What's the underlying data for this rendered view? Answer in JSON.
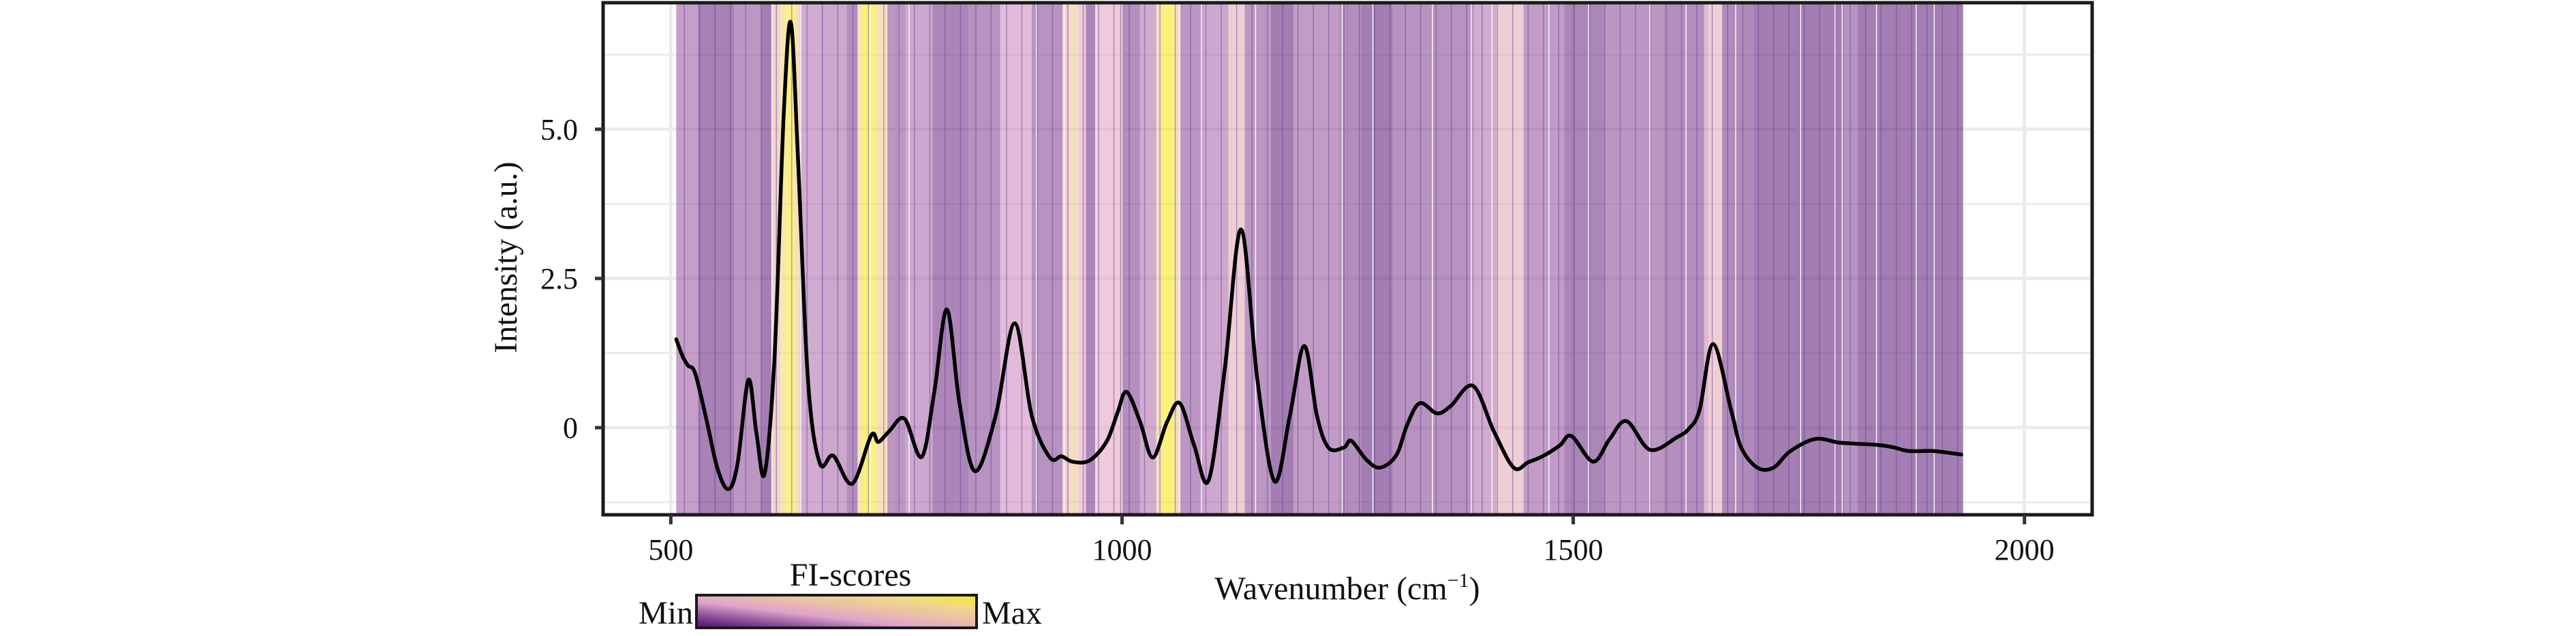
{
  "chart_data": {
    "type": "line",
    "title": "",
    "xlabel": "Wavenumber (cm⁻¹)",
    "xlabel_main": "Wavenumber (cm",
    "xlabel_sup": "−1",
    "xlabel_close": ")",
    "ylabel": "Intensity (a.u.)",
    "xlim": [
      425,
      2075
    ],
    "ylim": [
      -1.46,
      7.12
    ],
    "x_ticks": [
      500,
      1000,
      1500,
      2000
    ],
    "x_tick_labels": [
      "500",
      "1000",
      "1500",
      "2000"
    ],
    "y_ticks": [
      0,
      2.5,
      5.0
    ],
    "y_tick_labels": [
      "0",
      "2.5",
      "5.0"
    ],
    "y_minor_gridlines": [
      -1.25,
      1.25,
      3.75,
      6.25
    ],
    "grid": true,
    "series": [
      {
        "name": "Spectrum",
        "color": "#000000",
        "x": [
          506,
          513,
          519,
          527,
          540,
          552,
          564,
          574,
          586,
          595,
          604,
          615,
          625,
          633,
          641,
          652,
          665,
          680,
          701,
          722,
          730,
          742,
          759,
          778,
          792,
          806,
          820,
          837,
          860,
          881,
          900,
          920,
          933,
          945,
          964,
          983,
          995,
          1005,
          1020,
          1034,
          1050,
          1064,
          1080,
          1096,
          1114,
          1132,
          1150,
          1169,
          1186,
          1202,
          1216,
          1229,
          1246,
          1254,
          1271,
          1286,
          1304,
          1316,
          1330,
          1349,
          1364,
          1389,
          1412,
          1434,
          1450,
          1466,
          1485,
          1498,
          1522,
          1540,
          1559,
          1585,
          1615,
          1628,
          1640,
          1655,
          1675,
          1686,
          1704,
          1722,
          1740,
          1768,
          1794,
          1815,
          1838,
          1855,
          1871,
          1898,
          1915,
          1930
        ],
        "y": [
          1.48,
          1.2,
          1.04,
          0.91,
          0.1,
          -0.7,
          -1.03,
          -0.6,
          0.8,
          -0.1,
          -0.77,
          1.2,
          5.2,
          6.79,
          4.5,
          0.8,
          -0.59,
          -0.47,
          -0.94,
          -0.13,
          -0.24,
          -0.06,
          0.15,
          -0.49,
          0.6,
          1.98,
          0.4,
          -0.73,
          0.2,
          1.75,
          0.2,
          -0.5,
          -0.48,
          -0.57,
          -0.55,
          -0.23,
          0.25,
          0.6,
          0.1,
          -0.5,
          0.1,
          0.41,
          -0.3,
          -0.88,
          1.0,
          3.32,
          0.8,
          -0.9,
          0.2,
          1.37,
          0.2,
          -0.34,
          -0.33,
          -0.22,
          -0.54,
          -0.67,
          -0.46,
          0.05,
          0.41,
          0.24,
          0.36,
          0.7,
          -0.06,
          -0.67,
          -0.58,
          -0.48,
          -0.3,
          -0.14,
          -0.57,
          -0.2,
          0.11,
          -0.37,
          -0.16,
          -0.02,
          0.3,
          1.4,
          0.29,
          -0.33,
          -0.67,
          -0.67,
          -0.4,
          -0.19,
          -0.25,
          -0.27,
          -0.29,
          -0.33,
          -0.39,
          -0.39,
          -0.42,
          -0.45
        ]
      }
    ],
    "fi_scores": {
      "label": "FI-scores",
      "min_label": "Min",
      "max_label": "Max",
      "colormap": [
        "#4b0c6b",
        "#8c4f9a",
        "#e0a3cc",
        "#ebc0a6",
        "#f1d98a",
        "#fbea1a"
      ],
      "background_range": [
        506,
        1932
      ],
      "bands": [
        {
          "from": 506,
          "to": 530,
          "score": 0.25
        },
        {
          "from": 530,
          "to": 570,
          "score": 0.12
        },
        {
          "from": 570,
          "to": 600,
          "score": 0.22
        },
        {
          "from": 600,
          "to": 612,
          "score": 0.1
        },
        {
          "from": 612,
          "to": 621,
          "score": 0.55
        },
        {
          "from": 621,
          "to": 626,
          "score": 0.8
        },
        {
          "from": 626,
          "to": 638,
          "score": 0.92
        },
        {
          "from": 638,
          "to": 643,
          "score": 0.7
        },
        {
          "from": 643,
          "to": 665,
          "score": 0.3
        },
        {
          "from": 665,
          "to": 695,
          "score": 0.28
        },
        {
          "from": 695,
          "to": 707,
          "score": 0.18
        },
        {
          "from": 707,
          "to": 712,
          "score": 0.75
        },
        {
          "from": 712,
          "to": 728,
          "score": 0.98
        },
        {
          "from": 728,
          "to": 740,
          "score": 0.72
        },
        {
          "from": 740,
          "to": 760,
          "score": 0.22
        },
        {
          "from": 760,
          "to": 790,
          "score": 0.28
        },
        {
          "from": 790,
          "to": 830,
          "score": 0.14
        },
        {
          "from": 830,
          "to": 865,
          "score": 0.2
        },
        {
          "from": 865,
          "to": 900,
          "score": 0.36
        },
        {
          "from": 900,
          "to": 934,
          "score": 0.2
        },
        {
          "from": 934,
          "to": 942,
          "score": 0.5
        },
        {
          "from": 942,
          "to": 952,
          "score": 0.68
        },
        {
          "from": 952,
          "to": 960,
          "score": 0.45
        },
        {
          "from": 960,
          "to": 971,
          "score": 0.15
        },
        {
          "from": 971,
          "to": 998,
          "score": 0.45
        },
        {
          "from": 998,
          "to": 1020,
          "score": 0.18
        },
        {
          "from": 1020,
          "to": 1038,
          "score": 0.3
        },
        {
          "from": 1038,
          "to": 1044,
          "score": 0.7
        },
        {
          "from": 1044,
          "to": 1058,
          "score": 0.97
        },
        {
          "from": 1058,
          "to": 1064,
          "score": 0.7
        },
        {
          "from": 1064,
          "to": 1090,
          "score": 0.22
        },
        {
          "from": 1090,
          "to": 1118,
          "score": 0.28
        },
        {
          "from": 1118,
          "to": 1136,
          "score": 0.48
        },
        {
          "from": 1136,
          "to": 1165,
          "score": 0.22
        },
        {
          "from": 1165,
          "to": 1190,
          "score": 0.1
        },
        {
          "from": 1190,
          "to": 1240,
          "score": 0.24
        },
        {
          "from": 1240,
          "to": 1265,
          "score": 0.18
        },
        {
          "from": 1265,
          "to": 1300,
          "score": 0.1
        },
        {
          "from": 1300,
          "to": 1390,
          "score": 0.2
        },
        {
          "from": 1390,
          "to": 1415,
          "score": 0.3
        },
        {
          "from": 1415,
          "to": 1445,
          "score": 0.48
        },
        {
          "from": 1445,
          "to": 1490,
          "score": 0.24
        },
        {
          "from": 1490,
          "to": 1535,
          "score": 0.14
        },
        {
          "from": 1535,
          "to": 1600,
          "score": 0.22
        },
        {
          "from": 1600,
          "to": 1645,
          "score": 0.18
        },
        {
          "from": 1645,
          "to": 1650,
          "score": 0.35
        },
        {
          "from": 1650,
          "to": 1665,
          "score": 0.5
        },
        {
          "from": 1665,
          "to": 1700,
          "score": 0.16
        },
        {
          "from": 1700,
          "to": 1800,
          "score": 0.1
        },
        {
          "from": 1800,
          "to": 1815,
          "score": 0.2
        },
        {
          "from": 1815,
          "to": 1932,
          "score": 0.1
        }
      ],
      "white_lines": [
        612,
        644,
        721,
        764,
        905,
        936,
        971,
        1000,
        1064,
        1088,
        1148,
        1244,
        1278,
        1344,
        1387,
        1410,
        1473,
        1517,
        1585,
        1625,
        1680,
        1752,
        1790,
        1798,
        1836,
        1880,
        1900
      ]
    }
  }
}
